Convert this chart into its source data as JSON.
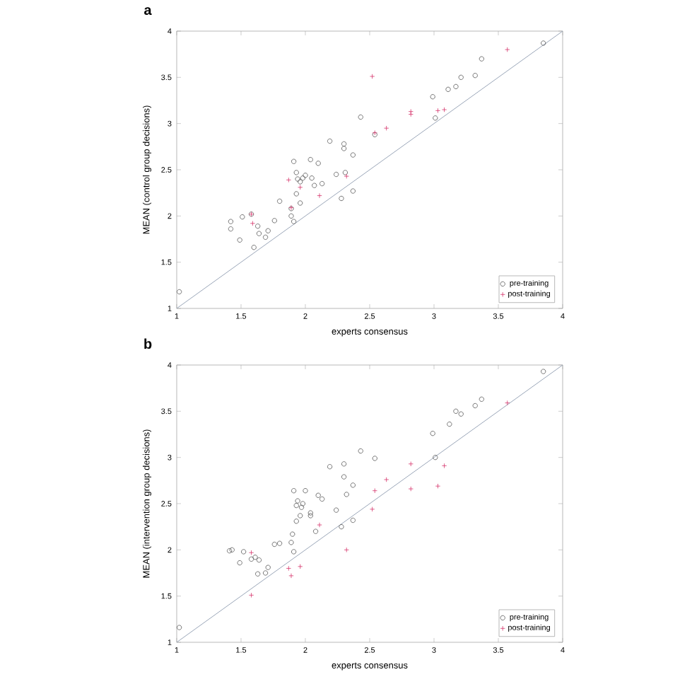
{
  "chart_data": [
    {
      "type": "scatter",
      "title": "**a**",
      "xlabel": "experts consensus",
      "ylabel": "MEAN (control group decisions)",
      "xlim": [
        1,
        4
      ],
      "ylim": [
        1,
        4
      ],
      "xticks": [
        1,
        1.5,
        2,
        2.5,
        3,
        3.5,
        4
      ],
      "yticks": [
        1,
        1.5,
        2,
        2.5,
        3,
        3.5,
        4
      ],
      "grid": false,
      "legend": "bottom right",
      "series": [
        {
          "name": "pre-training",
          "color": "#555555",
          "marker": "circle",
          "x": [
            1.02,
            1.42,
            1.42,
            1.51,
            1.49,
            1.6,
            1.63,
            1.64,
            1.69,
            1.71,
            1.76,
            1.8,
            1.89,
            1.89,
            1.91,
            1.91,
            1.93,
            1.94,
            1.93,
            1.96,
            1.96,
            1.98,
            2.0,
            2.04,
            2.05,
            2.07,
            2.1,
            2.13,
            2.19,
            2.24,
            2.28,
            2.3,
            2.3,
            2.31,
            2.37,
            2.37,
            2.43,
            2.54,
            1.58,
            3.85,
            3.37,
            3.21,
            3.32,
            3.11,
            3.17,
            2.99,
            3.01
          ],
          "values": [
            1.18,
            1.94,
            1.86,
            1.99,
            1.74,
            1.66,
            1.89,
            1.81,
            1.77,
            1.84,
            1.95,
            2.16,
            2.08,
            2.0,
            1.94,
            2.59,
            2.47,
            2.4,
            2.24,
            2.14,
            2.37,
            2.41,
            2.44,
            2.61,
            2.41,
            2.33,
            2.57,
            2.35,
            2.81,
            2.45,
            2.19,
            2.78,
            2.73,
            2.47,
            2.66,
            2.27,
            3.07,
            2.88,
            2.02,
            3.87,
            3.7,
            3.5,
            3.52,
            3.37,
            3.4,
            3.29,
            3.06
          ]
        },
        {
          "name": "post-training",
          "color": "#d6336b",
          "marker": "cross",
          "x": [
            1.58,
            1.59,
            1.87,
            1.89,
            1.96,
            2.11,
            2.32,
            2.52,
            2.54,
            2.63,
            3.57,
            2.82,
            2.82,
            3.03,
            3.08
          ],
          "values": [
            2.02,
            1.92,
            2.39,
            2.09,
            2.31,
            2.22,
            2.43,
            3.51,
            2.9,
            2.95,
            3.8,
            3.13,
            3.1,
            3.14,
            3.15
          ]
        },
        {
          "type": "line",
          "color": "#9aa6b8",
          "x": [
            1,
            4
          ],
          "values": [
            1,
            4
          ]
        }
      ]
    },
    {
      "type": "scatter",
      "title": "**b**",
      "xlabel": "experts consensus",
      "ylabel": "MEAN (intervention group decisions)",
      "xlim": [
        1,
        4
      ],
      "ylim": [
        1,
        4
      ],
      "xticks": [
        1,
        1.5,
        2,
        2.5,
        3,
        3.5,
        4
      ],
      "yticks": [
        1,
        1.5,
        2,
        2.5,
        3,
        3.5,
        4
      ],
      "grid": false,
      "legend": "bottom right",
      "series": [
        {
          "name": "pre-training",
          "color": "#555555",
          "marker": "circle",
          "x": [
            1.02,
            1.41,
            1.43,
            1.49,
            1.52,
            1.58,
            1.61,
            1.64,
            1.63,
            1.69,
            1.71,
            1.76,
            1.8,
            1.89,
            1.9,
            1.91,
            1.93,
            1.96,
            1.93,
            1.98,
            1.94,
            1.97,
            1.91,
            2.0,
            2.04,
            2.04,
            2.08,
            2.1,
            2.13,
            2.19,
            2.24,
            2.28,
            2.3,
            2.3,
            2.32,
            2.37,
            2.37,
            2.43,
            2.54,
            3.85,
            3.37,
            3.32,
            3.17,
            3.21,
            3.12,
            2.99,
            3.01
          ],
          "values": [
            1.16,
            1.99,
            2.0,
            1.86,
            1.98,
            1.9,
            1.92,
            1.89,
            1.74,
            1.75,
            1.81,
            2.06,
            2.07,
            2.08,
            2.17,
            1.98,
            2.31,
            2.37,
            2.48,
            2.5,
            2.53,
            2.46,
            2.64,
            2.64,
            2.4,
            2.37,
            2.2,
            2.59,
            2.55,
            2.9,
            2.43,
            2.25,
            2.93,
            2.79,
            2.6,
            2.7,
            2.32,
            3.07,
            2.99,
            3.93,
            3.63,
            3.56,
            3.5,
            3.47,
            3.36,
            3.26,
            3.0
          ]
        },
        {
          "name": "post-training",
          "color": "#d6336b",
          "marker": "cross",
          "x": [
            1.58,
            1.58,
            1.87,
            1.89,
            1.96,
            2.11,
            2.32,
            2.52,
            2.54,
            2.63,
            3.57,
            2.82,
            3.08,
            2.82,
            3.03
          ],
          "values": [
            1.97,
            1.51,
            1.8,
            1.72,
            1.82,
            2.27,
            2.0,
            2.44,
            2.64,
            2.76,
            3.59,
            2.93,
            2.91,
            2.66,
            2.69
          ]
        },
        {
          "type": "line",
          "color": "#9aa6b8",
          "x": [
            1,
            4
          ],
          "values": [
            1,
            4
          ]
        }
      ]
    }
  ]
}
